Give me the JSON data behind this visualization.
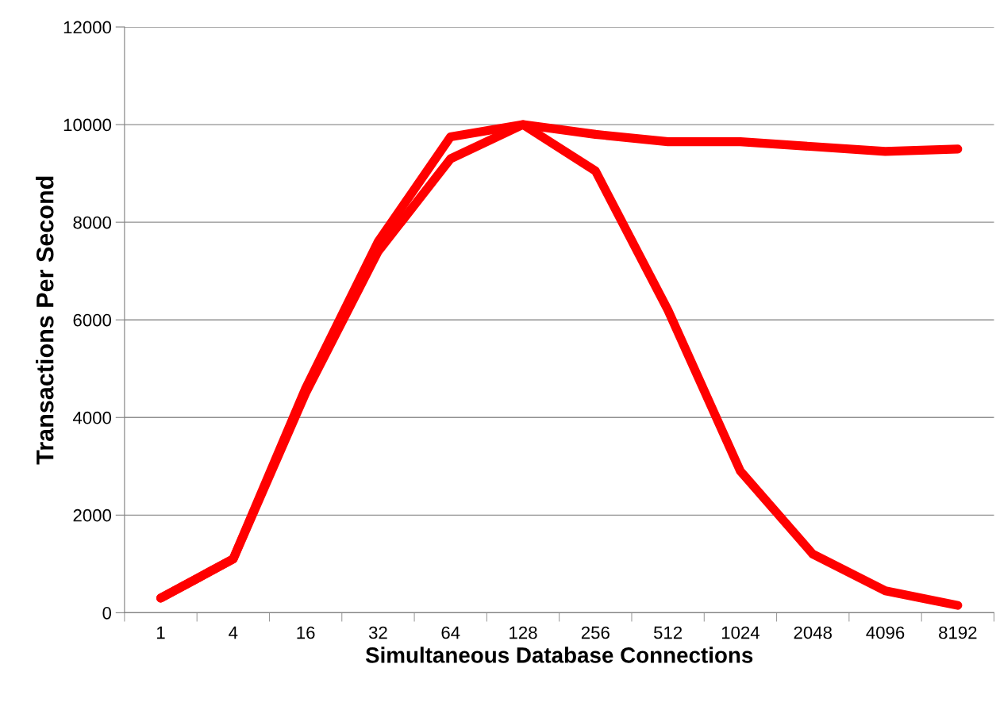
{
  "chart_data": {
    "type": "line",
    "xlabel": "Simultaneous Database Connections",
    "ylabel": "Transactions Per Second",
    "categories": [
      "1",
      "4",
      "16",
      "32",
      "64",
      "128",
      "256",
      "512",
      "1024",
      "2048",
      "4096",
      "8192"
    ],
    "series": [
      {
        "color": "#ff0000",
        "values": [
          300,
          1100,
          4500,
          7400,
          9300,
          10000,
          9050,
          6200,
          2900,
          1200,
          450,
          150
        ]
      },
      {
        "color": "#ff0000",
        "values": [
          300,
          1100,
          4600,
          7600,
          9750,
          10000,
          9800,
          9650,
          9650,
          9550,
          9450,
          9500
        ]
      }
    ],
    "ylim": [
      0,
      12000
    ],
    "yticks": [
      0,
      2000,
      4000,
      6000,
      8000,
      10000,
      12000
    ],
    "grid": "y",
    "marker": "none",
    "line_style": "solid"
  }
}
